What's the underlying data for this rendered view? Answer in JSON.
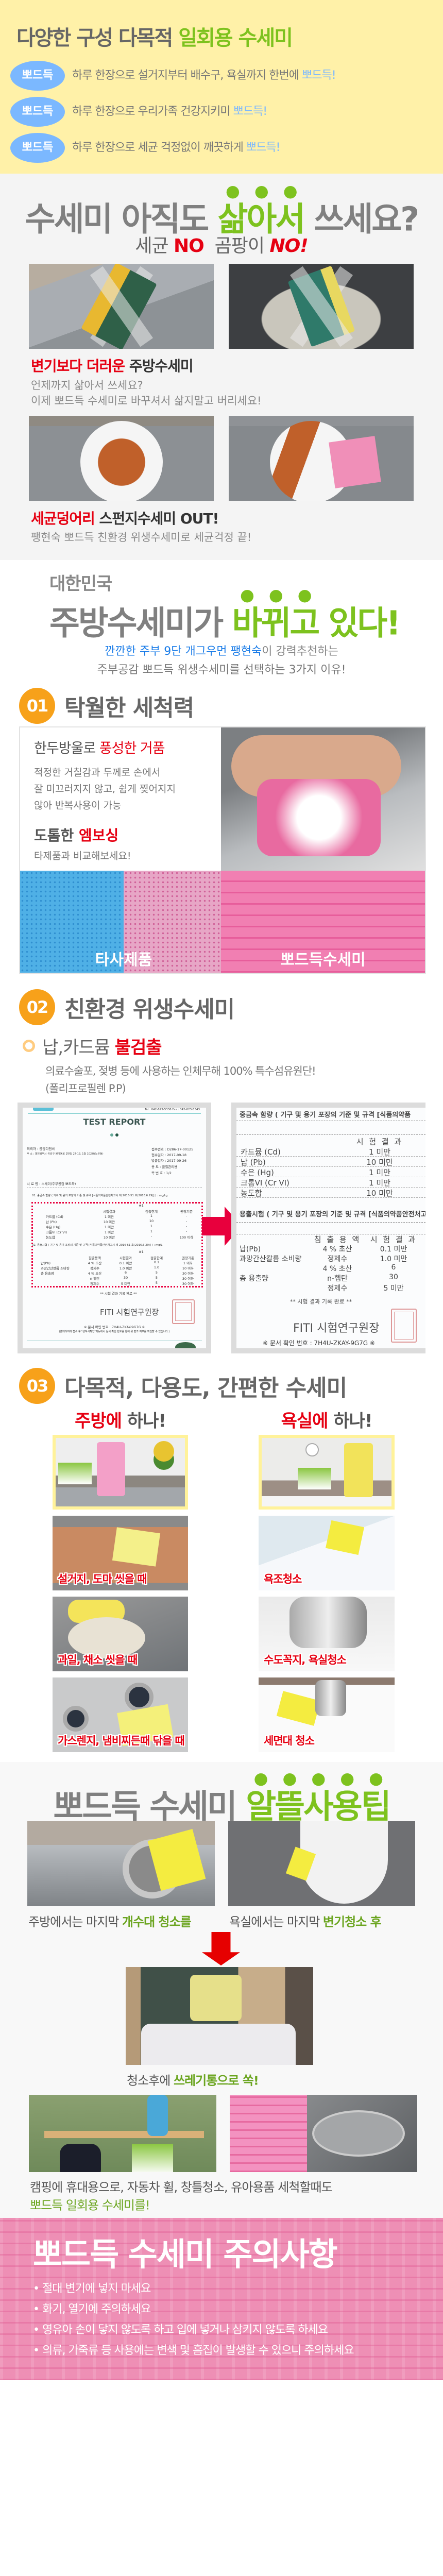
{
  "colors": {
    "yellow_bg": "#FFF1A8",
    "accent_green": "#7DC21E",
    "badge_blue": "#7BB8FF",
    "accent_red": "#E60012",
    "step_orange": "#F7A11A",
    "caution_pink": "#EE8FB5"
  },
  "intro": {
    "title": "다양한 구성 다목적 ",
    "title_accent": "일회용 수세미",
    "rows": [
      {
        "badge": "뽀드득",
        "text": "하루 한장으로 설거지부터 배수구, 욕실까지 한번에 ",
        "accent": "뽀드득!"
      },
      {
        "badge": "뽀드득",
        "text": "하루 한장으로 우리가족 건강지키미 ",
        "accent": "뽀드득!"
      },
      {
        "badge": "뽀드득",
        "text": "하루 한장으로 세균 걱정없이 깨끗하게 ",
        "accent": "뽀드득!"
      }
    ]
  },
  "boil": {
    "title_a": "수세미 아직도 ",
    "title_accent": "삶아서",
    "title_b": " 쓰세요?",
    "sub_a": "세균 ",
    "sub_no1": "NO",
    "sub_b": "  곰팡이 ",
    "sub_no2": "NO!",
    "caption1_red": "변기보다 더러운",
    "caption1_dark": " 주방수세미",
    "caption1_lines": [
      "언제까지 삶아서 쓰세요?",
      "이제 뽀드득 수세미로 바꾸셔서 삶지말고 버리세요!"
    ],
    "caption2_red": "세균덩어리",
    "caption2_dark": " 스펀지수세미 OUT!",
    "caption2_line": "팽현숙 뽀드득 친환경 위생수세미로 세균걱정 끝!"
  },
  "change": {
    "kicker": "대한민국",
    "title_a": "주방수세미가 ",
    "title_accent": "바뀌고",
    "title_b": " 있다!",
    "line1_blue": "깐깐한 주부 9단 개그우먼 팽현숙",
    "line1_gray": "이 강력추천하는",
    "line2": "주부공감 뽀드득 위생수세미를 선택하는 3가지 이유!"
  },
  "reason1": {
    "number": "01",
    "title": "탁월한 세척력",
    "head1": "한두방울로 ",
    "head1_red": "풍성한 거품",
    "body": [
      "적정한 거칠감과 두께로 손에서",
      "잘 미끄러지지 않고, 쉽게 찢어지지",
      "않아 반복사용이 가능"
    ],
    "head2": "도톰한 ",
    "head2_red": "엠보싱",
    "head2_sub": "타제품과 비교해보세요!",
    "label_other": "타사제품",
    "label_ours": "뽀드득수세미"
  },
  "reason2": {
    "number": "02",
    "title": "친환경 위생수세미",
    "head": "납,카드뮴 ",
    "head_red": "불검출",
    "body": [
      "의료수술포, 젖병 등에 사용하는 인체무해 100% 특수섬유원단!",
      "(폴리프로필렌 P.P)"
    ],
    "report": {
      "contact": "Tel : 042-623-5336   Fax : 042-623-5343",
      "title": "TEST REPORT",
      "client": "의뢰자 : 공감디엔씨",
      "address": "주    소 : 대전광역시 유성구 왕가봉로 2번길 27-13, 1층 102호(노은동)",
      "meta": [
        "접수번호 : D286-17-00125",
        "접수일자 : 2017-09-18",
        "발급일자 : 2017-09-26",
        "용    도 : 품질관리용",
        "쪽 번 호 : 1/2"
      ],
      "sample": "시 료 명 : 수세미(주부공감 뽀드득)",
      "t1_heading": "01. 중금속 함량 ( 기구 및 용기 포장의 기준 및 규격 [식품의약품안전처고시 제 2016-51 호(2016.6.29)] ) : mg/kg",
      "t1_sample": "#1",
      "t1_cols": [
        "시험결과",
        "검출한계",
        "권장기준"
      ],
      "t1_rows": [
        [
          "카드뮴 (Cd)",
          "1 미만",
          "1",
          "-"
        ],
        [
          "납 (Pb)",
          "10 미만",
          "10",
          "-"
        ],
        [
          "수은 (Hg)",
          "1 미만",
          "1",
          "-"
        ],
        [
          "크롬VI (Cr VI)",
          "1 미만",
          "1",
          "-"
        ],
        [
          "농도합",
          "10 미만",
          "-",
          "100 이하"
        ]
      ],
      "t2_heading": "02. 용출시험 ( 기구 및 용기 포장의 기준 및 규격 [식품의약품안전처고시 제 2016-51 호(2016.6.29)] ) : mg/L",
      "t2_sample": "#1",
      "t2_cols": [
        "침출용액",
        "시험결과",
        "검출한계",
        "권장기준"
      ],
      "t2_rows": [
        [
          "납(Pb)",
          "4 % 초산",
          "0.1 미만",
          "0.1",
          "1 이하"
        ],
        [
          "과망간산칼륨 소비량",
          "정제수",
          "1.0 미만",
          "1.0",
          "10 이하"
        ],
        [
          "총 용출량",
          "4 % 초산",
          "6",
          "5",
          "30 이하"
        ],
        [
          "",
          "n-헵탄",
          "30",
          "5",
          "30 이하"
        ],
        [
          "",
          "정제수",
          "5 미만",
          "5",
          "30 이하"
        ]
      ],
      "done": "** 시험 결과 기록 완료 **",
      "signer": "FITI 시험연구원장",
      "doc_no": "※ 문서 확인 번호 : 7H4U-ZKAY-9G7G ※",
      "notice": "(홈페이지에 접속 후 \"성적서확인\"메뉴에서 문서 확인 번호를 통해 위 변조 여부를 확인할 수 있습니다.)"
    },
    "zoomed": {
      "heading1": "중금속 함량 ( 기구 및 용기 포장의 기준 및 규격 [식품의약품",
      "col_result": "시 험 결 과",
      "rows1": [
        [
          "카드뮴 (Cd)",
          "1 미만"
        ],
        [
          "납 (Pb)",
          "10 미만"
        ],
        [
          "수은 (Hg)",
          "1 미만"
        ],
        [
          "크롬VI (Cr VI)",
          "1 미만"
        ],
        [
          "농도합",
          "10 미만"
        ]
      ],
      "heading2": "용출시험 ( 기구 및 용기 포장의 기준 및 규격 [식품의약품안전처고",
      "col_solution": "침 출 용 액",
      "rows2": [
        [
          "납(Pb)",
          "4 % 초산",
          "0.1 미만"
        ],
        [
          "과망간산칼륨 소비량",
          "정제수",
          "1.0 미만"
        ],
        [
          "",
          "4 % 초산",
          "6"
        ],
        [
          "총 용출량",
          "n-헵탄",
          "30"
        ],
        [
          "",
          "정제수",
          "5 미만"
        ]
      ],
      "done": "** 시험 결과 기록 완료 **",
      "signer": "FITI 시험연구원장",
      "doc_no": "※ 문서 확인 번호 : 7H4U-ZKAY-9G7G ※"
    }
  },
  "reason3": {
    "number": "03",
    "title": "다목적, 다용도, 간편한 수세미",
    "kitchen_red": "주방에",
    "kitchen_rest": " 하나!",
    "bath_red": "욕실에",
    "bath_rest": " 하나!",
    "kitchen_labels": [
      "설거지, 도마 씻을 때",
      "과일, 채소 씻을 때",
      "가스렌지, 냄비찌든때 닦을 때"
    ],
    "bath_labels": [
      "욕조청소",
      "수도꼭지, 욕실청소",
      "세면대 청소"
    ]
  },
  "tips": {
    "title_a": "뽀드득 수세미 ",
    "title_accent": "알뜰사용팁",
    "kitchen_a": "주방에서는 마지막 ",
    "kitchen_accent": "개수대 청소를",
    "bath_a": "욕실에서는 마지막 ",
    "bath_accent": "변기청소 후",
    "trash_a": "청소후에 ",
    "trash_accent": "쓰레기통으로 쏙!",
    "camping": "캠핑에 휴대용으로, 자동차 휠, 창틀청소, 유아용품 세척할때도",
    "camping_accent": "뽀드득 일회용 수세미를!"
  },
  "caution": {
    "title": "뽀드득 수세미 주의사항",
    "items": [
      "• 절대 변기에 넣지 마세요",
      "• 화기, 열기에 주의하세요",
      "• 영유아 손이 닿지 않도록 하고 입에 넣거나 삼키지 않도록 하세요",
      "• 의류, 가죽류 등 사용에는 변색 및 흠집이 발생할 수 있으니 주의하세요"
    ]
  }
}
